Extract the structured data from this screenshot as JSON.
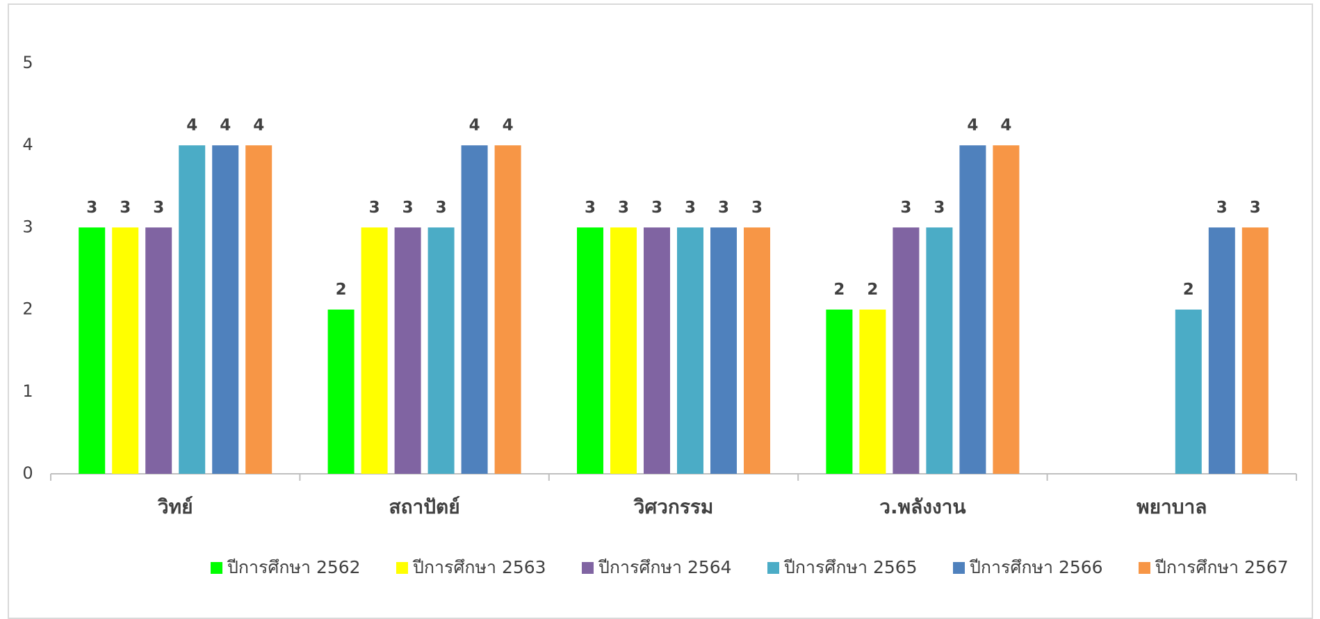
{
  "chart_data": {
    "type": "bar",
    "categories": [
      "วิทย์",
      "สถาปัตย์",
      "วิศวกรรม",
      "ว.พลังงาน",
      "พยาบาล"
    ],
    "series": [
      {
        "name": "ปีการศึกษา 2562",
        "color": "#00ff00",
        "values": [
          3,
          2,
          3,
          2,
          null
        ]
      },
      {
        "name": "ปีการศึกษา 2563",
        "color": "#ffff00",
        "values": [
          3,
          3,
          3,
          2,
          null
        ]
      },
      {
        "name": "ปีการศึกษา 2564",
        "color": "#8064a2",
        "values": [
          3,
          3,
          3,
          3,
          null
        ]
      },
      {
        "name": "ปีการศึกษา 2565",
        "color": "#4bacc6",
        "values": [
          4,
          3,
          3,
          3,
          2
        ]
      },
      {
        "name": "ปีการศึกษา 2566",
        "color": "#4f81bd",
        "values": [
          4,
          4,
          3,
          4,
          3
        ]
      },
      {
        "name": "ปีการศึกษา 2567",
        "color": "#f79646",
        "values": [
          4,
          4,
          3,
          4,
          3
        ]
      }
    ],
    "ylim": [
      0,
      5
    ],
    "yticks": [
      0,
      1,
      2,
      3,
      4,
      5
    ],
    "grid": false,
    "legend": "bottom"
  }
}
